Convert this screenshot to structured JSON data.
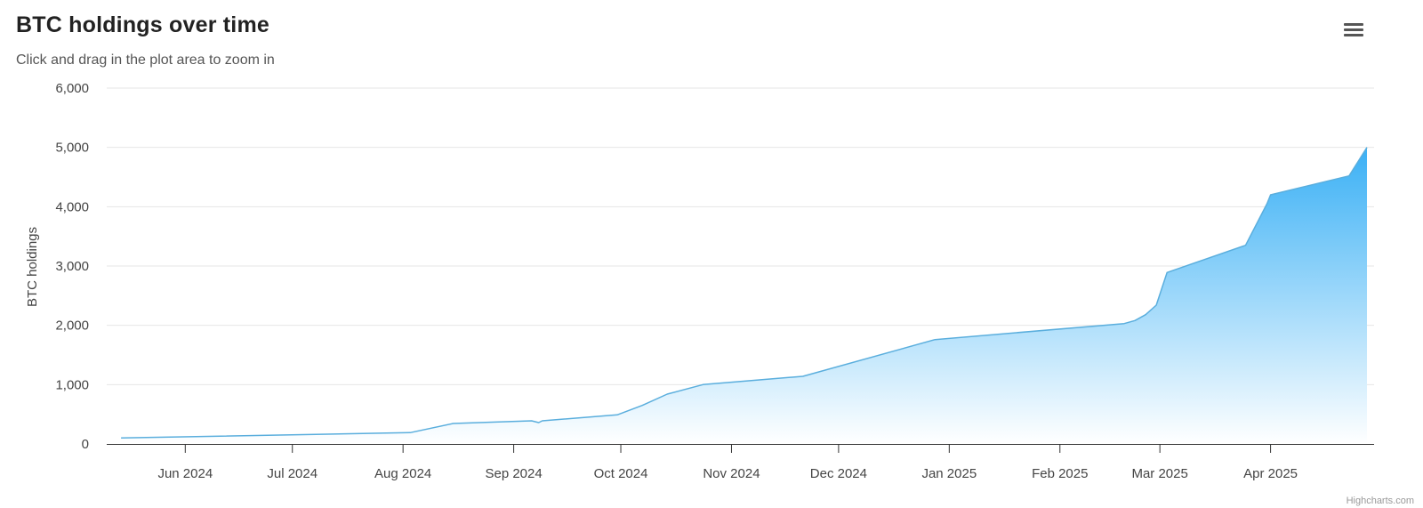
{
  "header": {
    "title": "BTC holdings over time",
    "subtitle": "Click and drag in the plot area to zoom in"
  },
  "menu": {
    "icon": "hamburger-menu-icon"
  },
  "credits": "Highcharts.com",
  "colors": {
    "line": "#5aaedd",
    "area_top": "#3ab0f5",
    "area_bottom": "#ffffff",
    "grid": "#e6e6e6",
    "axis": "#333333"
  },
  "chart_data": {
    "type": "area",
    "title": "BTC holdings over time",
    "subtitle": "Click and drag in the plot area to zoom in",
    "ylabel": "BTC holdings",
    "xlabel": "",
    "ylim": [
      0,
      6000
    ],
    "xlim": [
      "2024-05-10",
      "2025-04-30"
    ],
    "y_ticks": [
      0,
      1000,
      2000,
      3000,
      4000,
      5000,
      6000
    ],
    "y_tick_labels": [
      "0",
      "1,000",
      "2,000",
      "3,000",
      "4,000",
      "5,000",
      "6,000"
    ],
    "x_ticks": [
      "2024-06-01",
      "2024-07-01",
      "2024-08-01",
      "2024-09-01",
      "2024-10-01",
      "2024-11-01",
      "2024-12-01",
      "2025-01-01",
      "2025-02-01",
      "2025-03-01",
      "2025-04-01"
    ],
    "x_tick_labels": [
      "Jun 2024",
      "Jul 2024",
      "Aug 2024",
      "Sep 2024",
      "Oct 2024",
      "Nov 2024",
      "Dec 2024",
      "Jan 2025",
      "Feb 2025",
      "Mar 2025",
      "Apr 2025"
    ],
    "grid": true,
    "legend": "none",
    "series": [
      {
        "x": [
          "2024-05-14",
          "2024-08-03",
          "2024-08-15",
          "2024-09-06",
          "2024-09-08",
          "2024-09-09",
          "2024-09-30",
          "2024-10-07",
          "2024-10-14",
          "2024-10-24",
          "2024-11-21",
          "2024-12-28",
          "2025-02-19",
          "2025-02-22",
          "2025-02-25",
          "2025-02-28",
          "2025-03-03",
          "2025-03-25",
          "2025-03-31",
          "2025-04-01",
          "2025-04-23",
          "2025-04-28"
        ],
        "y": [
          100,
          190,
          345,
          390,
          360,
          390,
          490,
          650,
          840,
          1000,
          1140,
          1760,
          2030,
          2080,
          2180,
          2340,
          2890,
          3350,
          4050,
          4200,
          4520,
          5000
        ]
      }
    ]
  }
}
